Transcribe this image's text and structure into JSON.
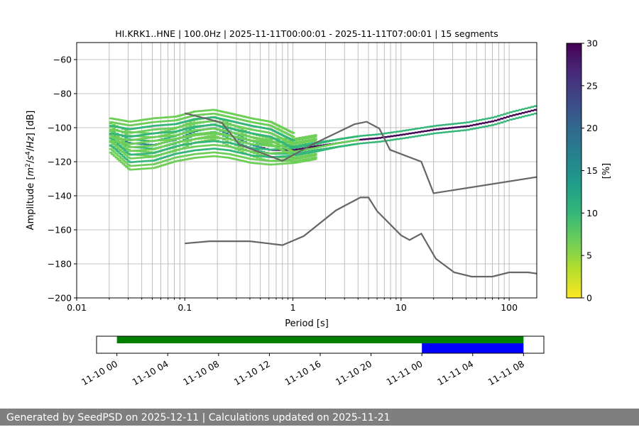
{
  "chart_data": {
    "type": "heatmap",
    "title": "HI.KRK1..HNE | 100.0Hz | 2025-11-11T00:00:01 - 2025-11-11T07:00:01 | 15 segments",
    "xlabel": "Period [s]",
    "ylabel": "Amplitude [m²/s⁴/Hz] [dB]",
    "x_scale": "log",
    "xlim": [
      0.01,
      180
    ],
    "ylim": [
      -200,
      -50
    ],
    "x_ticks": [
      {
        "value": 0.01,
        "label": "0.01"
      },
      {
        "value": 0.1,
        "label": "0.1"
      },
      {
        "value": 1,
        "label": "1"
      },
      {
        "value": 10,
        "label": "10"
      },
      {
        "value": 100,
        "label": "100"
      }
    ],
    "y_ticks": [
      {
        "value": -60,
        "label": "−60"
      },
      {
        "value": -80,
        "label": "−80"
      },
      {
        "value": -100,
        "label": "−100"
      },
      {
        "value": -120,
        "label": "−120"
      },
      {
        "value": -140,
        "label": "−140"
      },
      {
        "value": -160,
        "label": "−160"
      },
      {
        "value": -180,
        "label": "−180"
      },
      {
        "value": -200,
        "label": "−200"
      }
    ],
    "colorbar": {
      "label": "[%]",
      "range": [
        0,
        30
      ],
      "colormap": "viridis_r",
      "ticks": [
        {
          "value": 0,
          "label": "0"
        },
        {
          "value": 5,
          "label": "5"
        },
        {
          "value": 10,
          "label": "10"
        },
        {
          "value": 15,
          "label": "15"
        },
        {
          "value": 20,
          "label": "20"
        },
        {
          "value": 25,
          "label": "25"
        },
        {
          "value": 30,
          "label": "30"
        }
      ]
    },
    "noise_models": [
      {
        "name": "high",
        "color": "#666666",
        "points": [
          [
            0.1,
            -91.5
          ],
          [
            0.22,
            -97
          ],
          [
            0.32,
            -110
          ],
          [
            0.8,
            -119.5
          ],
          [
            1.5,
            -110
          ],
          [
            3.7,
            -98
          ],
          [
            4.8,
            -96.5
          ],
          [
            6.3,
            -100.5
          ],
          [
            7.9,
            -113
          ],
          [
            15.4,
            -120
          ],
          [
            20,
            -138.5
          ],
          [
            180,
            -129
          ]
        ]
      },
      {
        "name": "low",
        "color": "#666666",
        "points": [
          [
            0.1,
            -168
          ],
          [
            0.17,
            -166.7
          ],
          [
            0.4,
            -166.7
          ],
          [
            0.8,
            -169
          ],
          [
            1.26,
            -163.7
          ],
          [
            2.5,
            -148.6
          ],
          [
            4.2,
            -141
          ],
          [
            5,
            -141
          ],
          [
            6,
            -149
          ],
          [
            10,
            -163.2
          ],
          [
            12,
            -166
          ],
          [
            15.4,
            -162.2
          ],
          [
            21,
            -177
          ],
          [
            31,
            -185
          ],
          [
            45,
            -187.5
          ],
          [
            70,
            -187.5
          ],
          [
            100,
            -185
          ],
          [
            150,
            -185
          ],
          [
            180,
            -185.7
          ]
        ]
      }
    ],
    "psd_bands": [
      {
        "name": "main",
        "x": [
          0.02,
          0.03,
          0.05,
          0.08,
          0.12,
          0.18,
          0.25,
          0.4,
          0.6,
          1,
          1.5,
          2.5,
          4,
          6,
          10,
          20,
          40,
          70,
          100,
          180
        ],
        "y": [
          -104,
          -109,
          -110,
          -107,
          -102,
          -100,
          -104,
          -110,
          -113,
          -113,
          -111,
          -109,
          -107,
          -106,
          -104,
          -101,
          -99,
          -96,
          -93,
          -89
        ]
      },
      {
        "name": "lower",
        "x": [
          0.02,
          0.03,
          0.05,
          0.08,
          0.12,
          0.18,
          0.25,
          0.4,
          0.6,
          1,
          1.5,
          2.5,
          4
        ],
        "y": [
          -108,
          -118,
          -117,
          -113,
          -111,
          -110,
          -111,
          -114,
          -115,
          -114,
          -112,
          -109,
          -107
        ]
      },
      {
        "name": "upper",
        "x": [
          0.02,
          0.03,
          0.05,
          0.08,
          0.12,
          0.18,
          0.25,
          0.4,
          0.6,
          1
        ],
        "y": [
          -101,
          -103,
          -101,
          -100,
          -97,
          -96,
          -98,
          -101,
          -103,
          -110
        ]
      }
    ],
    "time_coverage": {
      "ticks": [
        "11-10 00",
        "11-10 04",
        "11-10 08",
        "11-10 12",
        "11-10 16",
        "11-10 20",
        "11-11 00",
        "11-11 04",
        "11-11 08"
      ],
      "tick_hours": [
        0,
        4,
        8,
        12,
        16,
        20,
        24,
        28,
        32
      ],
      "range_hours": [
        -1.6,
        33.6
      ],
      "bars": [
        {
          "start_hour": 0,
          "end_hour": 32,
          "color": "#008000"
        },
        {
          "start_hour": 24,
          "end_hour": 32,
          "color": "#0000ff"
        }
      ]
    }
  },
  "footer_text": "Generated by SeedPSD on 2025-12-11 | Calculations updated on 2025-11-21"
}
